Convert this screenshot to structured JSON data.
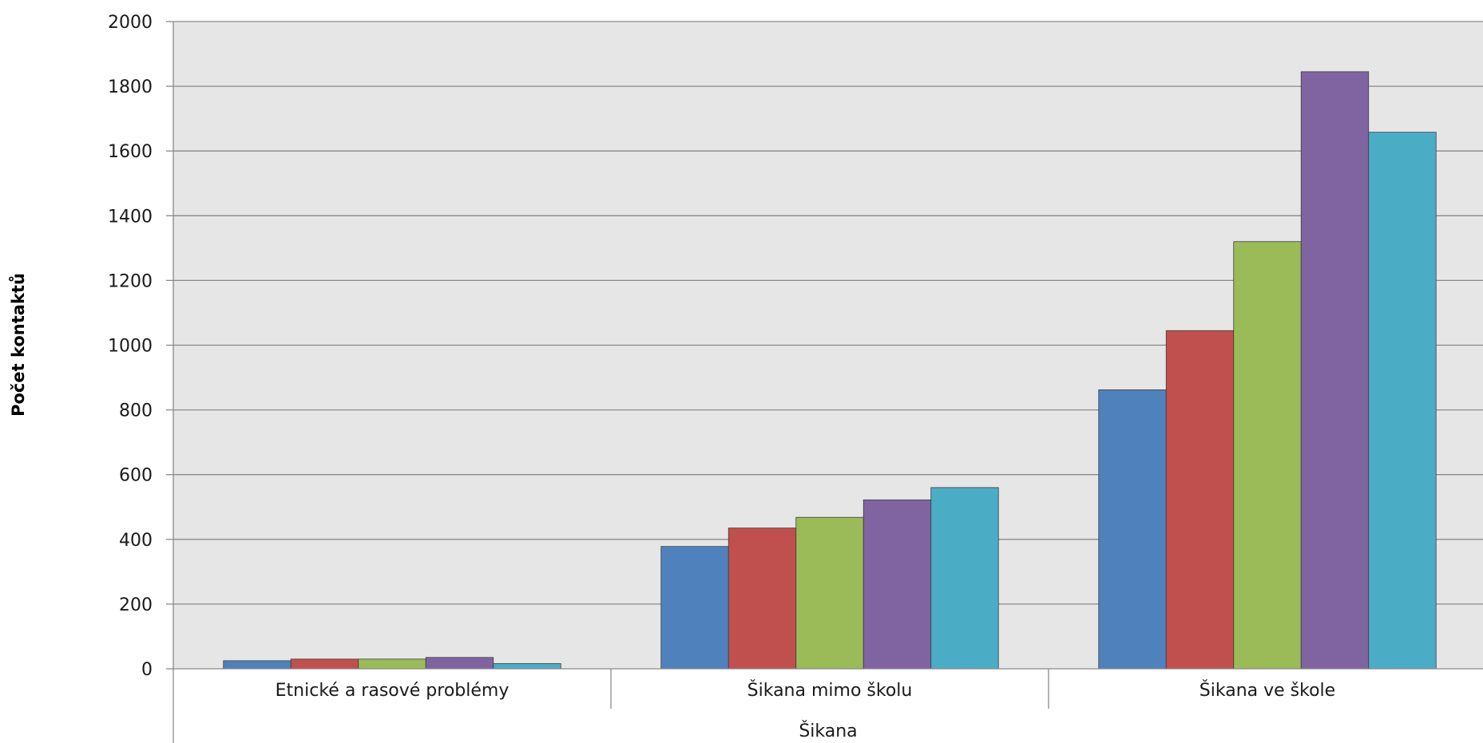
{
  "chart_data": {
    "type": "bar",
    "title": "",
    "ylabel": "Počet kontaktů",
    "ylim": [
      0,
      2000
    ],
    "yticks": [
      0,
      200,
      400,
      600,
      800,
      1000,
      1200,
      1400,
      1600,
      1800,
      2000
    ],
    "group_label": "Šikana",
    "categories": [
      "Etnické a rasové problémy",
      "Šikana mimo školu",
      "Šikana ve škole"
    ],
    "grid": true,
    "legend": "none",
    "series": [
      {
        "color": "#4F81BD",
        "values": [
          25,
          378,
          862
        ]
      },
      {
        "color": "#C0504D",
        "values": [
          30,
          435,
          1045
        ]
      },
      {
        "color": "#9BBB59",
        "values": [
          30,
          468,
          1320
        ]
      },
      {
        "color": "#8064A2",
        "values": [
          35,
          522,
          1845
        ]
      },
      {
        "color": "#4BACC6",
        "values": [
          16,
          560,
          1658
        ]
      }
    ]
  }
}
